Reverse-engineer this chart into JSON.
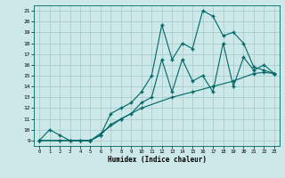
{
  "xlabel": "Humidex (Indice chaleur)",
  "bg_color": "#cce8e8",
  "grid_color": "#aacccc",
  "line_color": "#006666",
  "xlim": [
    -0.5,
    23.5
  ],
  "ylim": [
    8.5,
    21.5
  ],
  "xticks": [
    0,
    1,
    2,
    3,
    4,
    5,
    6,
    7,
    8,
    9,
    10,
    11,
    12,
    13,
    14,
    15,
    16,
    17,
    18,
    19,
    20,
    21,
    22,
    23
  ],
  "yticks": [
    9,
    10,
    11,
    12,
    13,
    14,
    15,
    16,
    17,
    18,
    19,
    20,
    21
  ],
  "line1_x": [
    0,
    1,
    2,
    3,
    4,
    5,
    6,
    7,
    8,
    9,
    10,
    11,
    12,
    13,
    14,
    15,
    16,
    17,
    18,
    19,
    20,
    21,
    22,
    23
  ],
  "line1_y": [
    9,
    10,
    9.5,
    9,
    9,
    9,
    9.5,
    10.5,
    11,
    11.5,
    12.5,
    13,
    16.5,
    13.5,
    16.5,
    14.5,
    15,
    13.5,
    18,
    14,
    16.7,
    15.5,
    16,
    15.2
  ],
  "line2_x": [
    0,
    2,
    3,
    4,
    5,
    6,
    7,
    8,
    9,
    10,
    11,
    12,
    13,
    14,
    15,
    16,
    17,
    18,
    19,
    20,
    21,
    22,
    23
  ],
  "line2_y": [
    9,
    9,
    9,
    9,
    9,
    9.5,
    11.5,
    12,
    12.5,
    13.5,
    15,
    19.7,
    16.5,
    18,
    17.5,
    21,
    20.5,
    18.7,
    19,
    18,
    15.8,
    15.5,
    15.2
  ],
  "line3_x": [
    0,
    5,
    8,
    10,
    13,
    15,
    17,
    19,
    21,
    22,
    23
  ],
  "line3_y": [
    9,
    9,
    11,
    12,
    13,
    13.5,
    14,
    14.5,
    15.2,
    15.3,
    15.2
  ]
}
